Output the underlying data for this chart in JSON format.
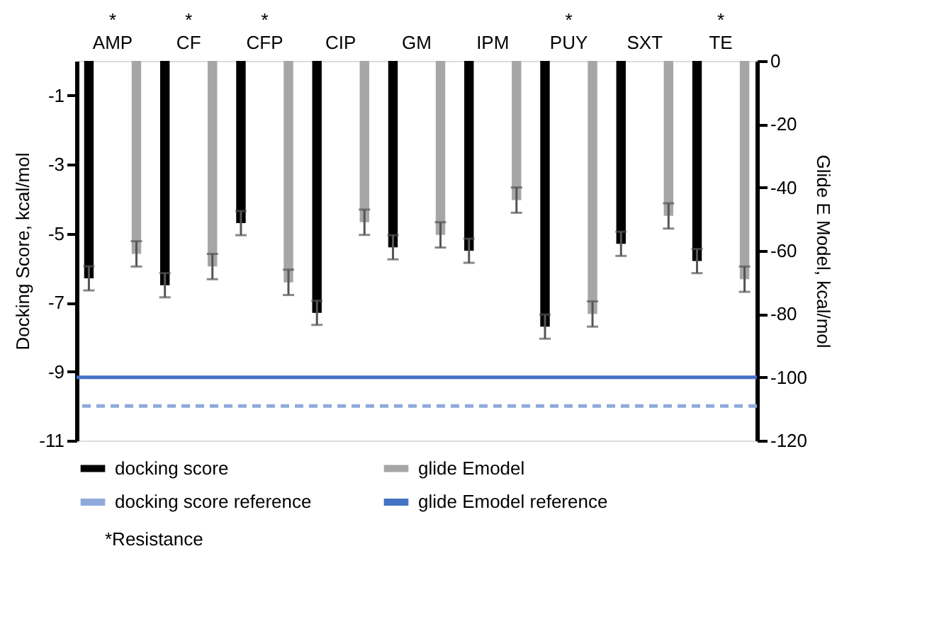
{
  "chart_data": {
    "type": "bar",
    "categories": [
      "*\nAMP",
      "*\nCF",
      "*\nCFP",
      "CIP",
      "GM",
      "IPM",
      "*\nPUY",
      "SXT",
      "*\nTE"
    ],
    "ylabel": "Docking Score, kcal/mol",
    "y2label": "Glide E Model, kcal/mol",
    "ylim": [
      -11,
      0
    ],
    "yticks": [
      -1,
      -3,
      -5,
      -7,
      -9,
      -11
    ],
    "y2lim": [
      -120,
      0
    ],
    "y2ticks": [
      0,
      -20,
      -40,
      -60,
      -80,
      -100,
      -120
    ],
    "series": [
      {
        "name": "docking score",
        "color": "#000000",
        "values": [
          -6.3,
          -6.5,
          -4.7,
          -7.3,
          -5.4,
          -5.5,
          -7.7,
          -5.3,
          -5.8
        ],
        "errors": [
          0.35,
          0.35,
          0.35,
          0.35,
          0.35,
          0.35,
          0.35,
          0.35,
          0.35
        ]
      },
      {
        "name": "glide Emodel",
        "color": "#a6a6a6",
        "axis": "y2",
        "values": [
          -61,
          -65,
          -70,
          -51,
          -55,
          -44,
          -80,
          -49,
          -69
        ],
        "errors": [
          4,
          4,
          4,
          4,
          4,
          4,
          4,
          4,
          4
        ]
      }
    ],
    "ref_lines": [
      {
        "axis": "y",
        "value": -10,
        "label": "docking score reference",
        "color": "#8eaadb",
        "line_style": "dashed"
      },
      {
        "axis": "y2",
        "value": -100,
        "label": "glide Emodel reference",
        "color": "#4472c4",
        "line_style": "solid"
      }
    ],
    "legend": "bottom",
    "grid": false,
    "annotations": [
      "*Resistance"
    ]
  }
}
